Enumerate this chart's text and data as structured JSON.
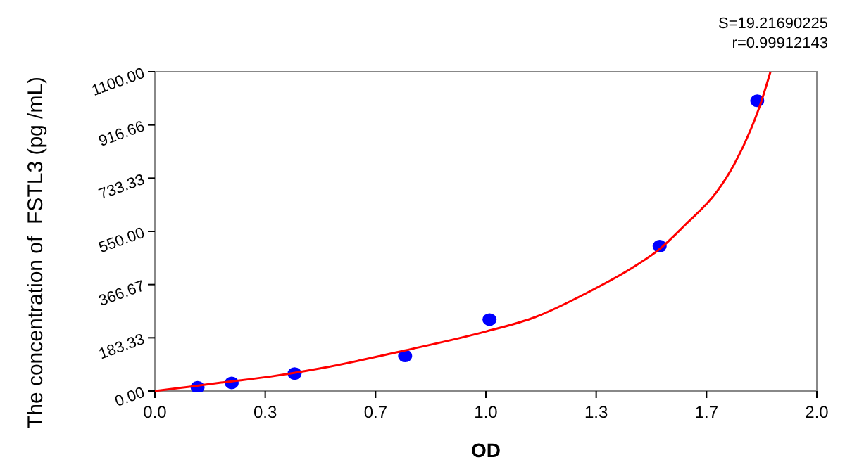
{
  "chart_data": {
    "type": "scatter",
    "xlabel": "OD",
    "ylabel": "The concentration of  FSTL3 (pg /mL)",
    "annotations": [
      "S=19.21690225",
      "r=0.99912143"
    ],
    "xlim": [
      0,
      2
    ],
    "xticks": [
      {
        "value": 0,
        "label": "0.0"
      },
      {
        "value": 0.3333,
        "label": "0.3"
      },
      {
        "value": 0.6667,
        "label": "0.7"
      },
      {
        "value": 1,
        "label": "1.0"
      },
      {
        "value": 1.3333,
        "label": "1.3"
      },
      {
        "value": 1.6667,
        "label": "1.7"
      },
      {
        "value": 2,
        "label": "2.0"
      }
    ],
    "ylim": [
      0,
      1100
    ],
    "yticks": [
      {
        "value": 0,
        "label": "0.00"
      },
      {
        "value": 183.33,
        "label": "183.33"
      },
      {
        "value": 366.67,
        "label": "366.67"
      },
      {
        "value": 550,
        "label": "550.00"
      },
      {
        "value": 733.33,
        "label": "733.33"
      },
      {
        "value": 916.66,
        "label": "916.66"
      },
      {
        "value": 1100,
        "label": "1100.00"
      }
    ],
    "grid": false,
    "series": [
      {
        "color": "#0000ff",
        "marker": "circle",
        "x": [
          0.129,
          0.232,
          0.422,
          0.756,
          1.011,
          1.525,
          1.82
        ],
        "values": [
          13,
          28,
          60,
          121,
          246,
          499,
          1000
        ]
      },
      {
        "type": "line",
        "color": "#ff0000",
        "marker": "none",
        "line_style": "solid",
        "x": [
          0,
          0.1,
          0.2,
          0.35,
          0.5,
          0.756,
          1.0,
          1.15,
          1.3,
          1.45,
          1.525,
          1.6,
          1.7,
          1.75,
          1.8,
          1.83,
          1.86
        ],
        "values": [
          0,
          14,
          29,
          50,
          78,
          140,
          205,
          255,
          335,
          430,
          489,
          570,
          690,
          780,
          900,
          990,
          1100
        ]
      }
    ]
  }
}
